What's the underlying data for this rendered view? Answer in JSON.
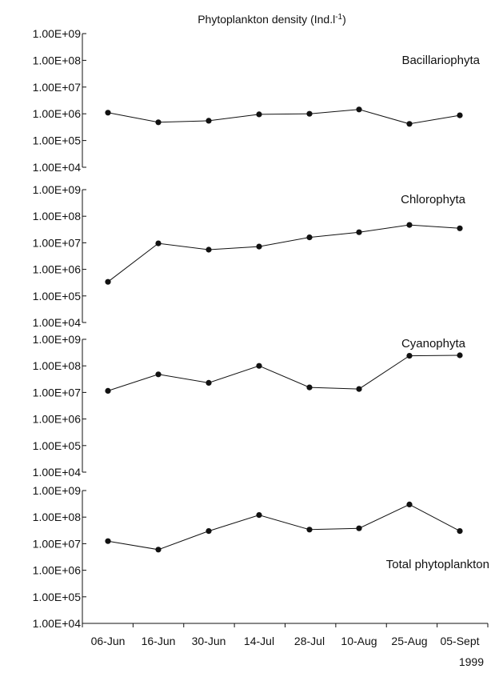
{
  "title": {
    "main": "Phytoplankton density (Ind.l",
    "sup": "-1",
    "tail": ")"
  },
  "chart_data": {
    "type": "line",
    "y_scale": "log",
    "ylim": [
      10000,
      1000000000
    ],
    "y_tick_labels": [
      "1.00E+09",
      "1.00E+08",
      "1.00E+07",
      "1.00E+06",
      "1.00E+05",
      "1.00E+04"
    ],
    "categories": [
      "06-Jun",
      "16-Jun",
      "30-Jun",
      "14-Jul",
      "28-Jul",
      "10-Aug",
      "25-Aug",
      "05-Sept"
    ],
    "xlabel": "1999",
    "panels": [
      {
        "name": "Bacillariophyta",
        "label_pos": "top-right",
        "values": [
          1100000,
          480000,
          550000,
          950000,
          1000000,
          1450000,
          420000,
          880000
        ]
      },
      {
        "name": "Chlorophyta",
        "label_pos": "top-right",
        "values": [
          340000,
          9500000,
          5500000,
          7200000,
          16000000,
          25000000,
          47000000,
          35000000
        ]
      },
      {
        "name": "Cyanophyta",
        "label_pos": "top-right",
        "values": [
          11500000,
          48000000,
          23000000,
          100000000,
          15500000,
          13500000,
          240000000,
          250000000
        ]
      },
      {
        "name": "Total phytoplankton",
        "label_pos": "middle-right",
        "values": [
          12500000,
          6000000,
          30000000,
          120000000,
          34000000,
          38000000,
          300000000,
          30000000
        ]
      }
    ],
    "grid": false,
    "marker": "circle",
    "color": "#111111"
  }
}
